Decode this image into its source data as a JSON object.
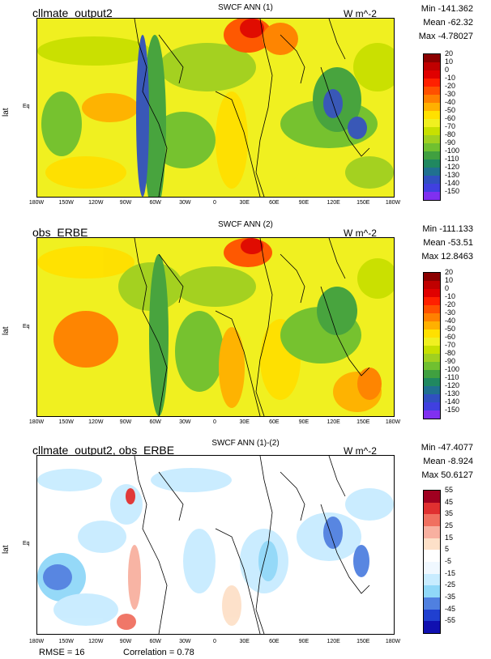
{
  "chart_data": [
    {
      "type": "heatmap",
      "case": "cllmate_output2",
      "title": "SWCF ANN (1)",
      "units": "W m^-2",
      "ylabel": "lat",
      "eq_label": "Eq",
      "stats": [
        "Min -141.362",
        "Mean -62.32",
        "Max -4.78027"
      ],
      "x_ticks": [
        "180W",
        "150W",
        "120W",
        "90W",
        "60W",
        "30W",
        "0",
        "30E",
        "60E",
        "90E",
        "120E",
        "150E",
        "180W"
      ],
      "colorbar": {
        "levels": [
          "20",
          "10",
          "0",
          "-10",
          "-20",
          "-30",
          "-40",
          "-50",
          "-60",
          "-70",
          "-80",
          "-90",
          "-100",
          "-110",
          "-120",
          "-130",
          "-140",
          "-150"
        ],
        "colors": [
          "#8b0000",
          "#c00000",
          "#e00000",
          "#ff2000",
          "#ff5000",
          "#ff8000",
          "#ffb000",
          "#ffe000",
          "#f0f020",
          "#c8e000",
          "#a0d020",
          "#70c030",
          "#40a040",
          "#208860",
          "#207090",
          "#3050c0",
          "#4040e0",
          "#8030f0"
        ]
      }
    },
    {
      "type": "heatmap",
      "case": "obs_ERBE",
      "title": "SWCF ANN (2)",
      "units": "W m^-2",
      "ylabel": "lat",
      "eq_label": "Eq",
      "stats": [
        "Min -111.133",
        "Mean -53.51",
        "Max 12.8463"
      ],
      "x_ticks": [
        "180W",
        "150W",
        "120W",
        "90W",
        "60W",
        "30W",
        "0",
        "30E",
        "60E",
        "90E",
        "120E",
        "150E",
        "180W"
      ],
      "colorbar": {
        "levels": [
          "20",
          "10",
          "0",
          "-10",
          "-20",
          "-30",
          "-40",
          "-50",
          "-60",
          "-70",
          "-80",
          "-90",
          "-100",
          "-110",
          "-120",
          "-130",
          "-140",
          "-150"
        ],
        "colors": [
          "#8b0000",
          "#c00000",
          "#e00000",
          "#ff2000",
          "#ff5000",
          "#ff8000",
          "#ffb000",
          "#ffe000",
          "#f0f020",
          "#c8e000",
          "#a0d020",
          "#70c030",
          "#40a040",
          "#208860",
          "#207090",
          "#3050c0",
          "#4040e0",
          "#8030f0"
        ]
      }
    },
    {
      "type": "heatmap",
      "case": "cllmate_output2, obs_ERBE",
      "title": "SWCF ANN (1)-(2)",
      "units": "W m^-2",
      "ylabel": "lat",
      "eq_label": "Eq",
      "stats": [
        "Min -47.4077",
        "Mean -8.924",
        "Max 50.6127"
      ],
      "x_ticks": [
        "180W",
        "150W",
        "120W",
        "90W",
        "60W",
        "30W",
        "0",
        "30E",
        "60E",
        "90E",
        "120E",
        "150E",
        "180W"
      ],
      "colorbar": {
        "levels": [
          "55",
          "45",
          "35",
          "25",
          "15",
          "5",
          "-5",
          "-15",
          "-25",
          "-35",
          "-45",
          "-55"
        ],
        "colors": [
          "#a00020",
          "#e03030",
          "#f07060",
          "#f8b0a0",
          "#fde0c8",
          "#ffffff",
          "#f0f8ff",
          "#c8ecff",
          "#90d8f8",
          "#5080e0",
          "#2040d0",
          "#1010b0"
        ]
      },
      "rmse": "RMSE = 16",
      "correlation": "Correlation = 0.78"
    }
  ]
}
